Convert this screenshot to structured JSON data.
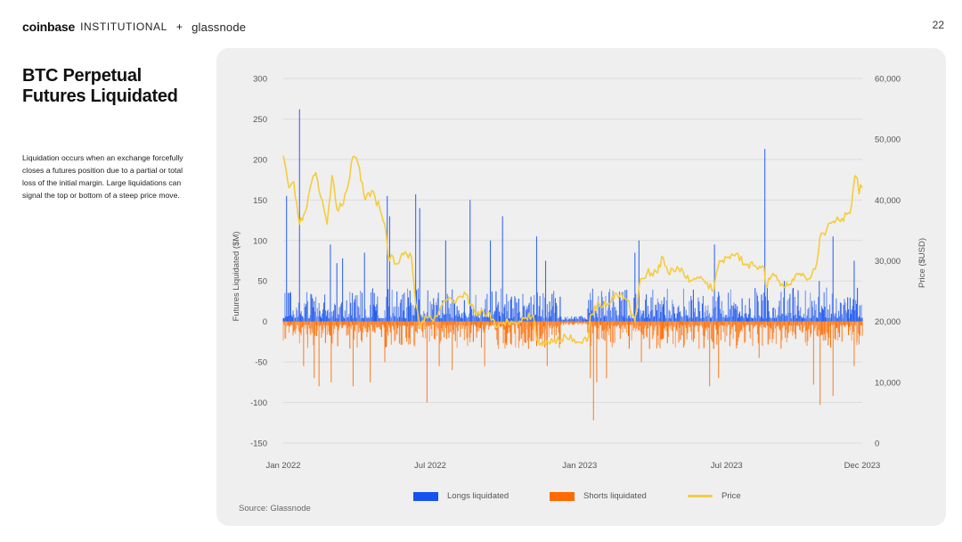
{
  "header": {
    "brand_primary": "coinbase",
    "brand_secondary": "INSTITUTIONAL",
    "brand_joiner": "+",
    "partner": "glassnode",
    "page_number": "22"
  },
  "sidebar": {
    "title": "BTC Perpetual Futures Liquidated",
    "description": "Liquidation occurs  when an exchange forcefully closes a futures position due to a partial or total loss of the initial margin. Large liquidations can signal the  top or bottom of a steep price move."
  },
  "source": "Source: Glassnode",
  "chart_data": {
    "type": "bar",
    "title": "",
    "xlabel": "",
    "ylabel": "Futures Liquidated ($M)",
    "y2label": "Price ($USD)",
    "ylim": [
      -150,
      300
    ],
    "y2lim": [
      0,
      60000
    ],
    "y_ticks": [
      "300",
      "250",
      "200",
      "150",
      "100",
      "50",
      "0",
      "-50",
      "-100",
      "-150"
    ],
    "y2_ticks": [
      "60,000",
      "50,000",
      "40,000",
      "30,000",
      "20,000",
      "10,000",
      "0"
    ],
    "x_ticks": [
      "Jan 2022",
      "Jul 2022",
      "Jan 2023",
      "Jul 2023",
      "Dec 2023"
    ],
    "x_range": [
      "2022-01-01",
      "2023-12-15"
    ],
    "grid": true,
    "legend_position": "bottom",
    "legend": [
      {
        "name": "Longs liquidated",
        "color": "#1652f0",
        "kind": "bar"
      },
      {
        "name": "Shorts liquidated",
        "color": "#ff6b00",
        "kind": "bar"
      },
      {
        "name": "Price",
        "color": "#f5cc3c",
        "kind": "line"
      }
    ],
    "series": [
      {
        "name": "Longs liquidated",
        "color": "#1652f0",
        "note": "daily values ($M); baseline noise 5-40, notable spikes listed",
        "spikes": [
          {
            "date": "2022-01-05",
            "value": 155
          },
          {
            "date": "2022-01-21",
            "value": 262
          },
          {
            "date": "2022-02-28",
            "value": 95
          },
          {
            "date": "2022-03-08",
            "value": 72
          },
          {
            "date": "2022-03-15",
            "value": 78
          },
          {
            "date": "2022-04-11",
            "value": 85
          },
          {
            "date": "2022-05-09",
            "value": 155
          },
          {
            "date": "2022-05-12",
            "value": 130
          },
          {
            "date": "2022-06-13",
            "value": 157
          },
          {
            "date": "2022-06-18",
            "value": 140
          },
          {
            "date": "2022-07-20",
            "value": 100
          },
          {
            "date": "2022-08-19",
            "value": 150
          },
          {
            "date": "2022-09-13",
            "value": 100
          },
          {
            "date": "2022-09-28",
            "value": 130
          },
          {
            "date": "2022-11-09",
            "value": 105
          },
          {
            "date": "2022-11-20",
            "value": 75
          },
          {
            "date": "2023-03-10",
            "value": 85
          },
          {
            "date": "2023-03-15",
            "value": 100
          },
          {
            "date": "2023-06-16",
            "value": 95
          },
          {
            "date": "2023-08-17",
            "value": 213
          },
          {
            "date": "2023-09-10",
            "value": 50
          },
          {
            "date": "2023-10-23",
            "value": 50
          },
          {
            "date": "2023-11-09",
            "value": 105
          },
          {
            "date": "2023-12-05",
            "value": 75
          }
        ]
      },
      {
        "name": "Shorts liquidated",
        "color": "#ff6b00",
        "note": "daily values ($M, plotted negative); baseline noise -5 to -30, notable spikes listed",
        "spikes": [
          {
            "date": "2022-01-26",
            "value": -55
          },
          {
            "date": "2022-02-08",
            "value": -70
          },
          {
            "date": "2022-02-14",
            "value": -80
          },
          {
            "date": "2022-03-01",
            "value": -75
          },
          {
            "date": "2022-03-28",
            "value": -80
          },
          {
            "date": "2022-04-18",
            "value": -75
          },
          {
            "date": "2022-05-06",
            "value": -50
          },
          {
            "date": "2022-06-27",
            "value": -100
          },
          {
            "date": "2022-07-12",
            "value": -55
          },
          {
            "date": "2022-07-28",
            "value": -60
          },
          {
            "date": "2022-09-06",
            "value": -55
          },
          {
            "date": "2022-11-22",
            "value": -55
          },
          {
            "date": "2023-01-14",
            "value": -70
          },
          {
            "date": "2023-01-18",
            "value": -122
          },
          {
            "date": "2023-01-22",
            "value": -75
          },
          {
            "date": "2023-02-03",
            "value": -70
          },
          {
            "date": "2023-03-18",
            "value": -50
          },
          {
            "date": "2023-06-10",
            "value": -80
          },
          {
            "date": "2023-06-21",
            "value": -70
          },
          {
            "date": "2023-08-10",
            "value": -45
          },
          {
            "date": "2023-10-16",
            "value": -78
          },
          {
            "date": "2023-10-24",
            "value": -103
          },
          {
            "date": "2023-11-09",
            "value": -92
          },
          {
            "date": "2023-12-05",
            "value": -55
          }
        ]
      },
      {
        "name": "Price",
        "color": "#f5cc3c",
        "axis": "right",
        "points": [
          [
            "2022-01-01",
            47300
          ],
          [
            "2022-01-08",
            42000
          ],
          [
            "2022-01-14",
            43000
          ],
          [
            "2022-01-21",
            36000
          ],
          [
            "2022-01-28",
            38000
          ],
          [
            "2022-02-07",
            44000
          ],
          [
            "2022-02-10",
            44500
          ],
          [
            "2022-02-18",
            40000
          ],
          [
            "2022-02-24",
            36000
          ],
          [
            "2022-03-02",
            44000
          ],
          [
            "2022-03-08",
            38500
          ],
          [
            "2022-03-14",
            39000
          ],
          [
            "2022-03-20",
            41500
          ],
          [
            "2022-03-28",
            47200
          ],
          [
            "2022-04-03",
            46000
          ],
          [
            "2022-04-12",
            40000
          ],
          [
            "2022-04-20",
            41500
          ],
          [
            "2022-04-30",
            38500
          ],
          [
            "2022-05-06",
            36000
          ],
          [
            "2022-05-10",
            31000
          ],
          [
            "2022-05-20",
            29500
          ],
          [
            "2022-05-31",
            31500
          ],
          [
            "2022-06-08",
            30500
          ],
          [
            "2022-06-13",
            23000
          ],
          [
            "2022-06-18",
            19000
          ],
          [
            "2022-06-25",
            21000
          ],
          [
            "2022-07-05",
            20000
          ],
          [
            "2022-07-20",
            23500
          ],
          [
            "2022-08-01",
            23000
          ],
          [
            "2022-08-14",
            24500
          ],
          [
            "2022-08-25",
            21500
          ],
          [
            "2022-09-10",
            21500
          ],
          [
            "2022-09-20",
            19000
          ],
          [
            "2022-10-05",
            20000
          ],
          [
            "2022-10-25",
            20500
          ],
          [
            "2022-11-05",
            21000
          ],
          [
            "2022-11-09",
            17000
          ],
          [
            "2022-11-20",
            16200
          ],
          [
            "2022-12-01",
            17000
          ],
          [
            "2022-12-15",
            17500
          ],
          [
            "2022-12-31",
            16600
          ],
          [
            "2023-01-12",
            17500
          ],
          [
            "2023-01-14",
            21000
          ],
          [
            "2023-01-25",
            23000
          ],
          [
            "2023-02-05",
            23000
          ],
          [
            "2023-02-16",
            24500
          ],
          [
            "2023-03-01",
            23500
          ],
          [
            "2023-03-10",
            20000
          ],
          [
            "2023-03-17",
            27000
          ],
          [
            "2023-03-25",
            28000
          ],
          [
            "2023-04-05",
            28200
          ],
          [
            "2023-04-14",
            30500
          ],
          [
            "2023-04-20",
            28000
          ],
          [
            "2023-05-01",
            29000
          ],
          [
            "2023-05-10",
            27500
          ],
          [
            "2023-05-20",
            26800
          ],
          [
            "2023-06-01",
            27000
          ],
          [
            "2023-06-15",
            25000
          ],
          [
            "2023-06-22",
            30000
          ],
          [
            "2023-07-01",
            30500
          ],
          [
            "2023-07-13",
            31200
          ],
          [
            "2023-07-25",
            29300
          ],
          [
            "2023-08-05",
            29200
          ],
          [
            "2023-08-16",
            29000
          ],
          [
            "2023-08-18",
            26000
          ],
          [
            "2023-08-29",
            27500
          ],
          [
            "2023-09-11",
            25500
          ],
          [
            "2023-09-20",
            27000
          ],
          [
            "2023-10-01",
            27500
          ],
          [
            "2023-10-10",
            27000
          ],
          [
            "2023-10-20",
            29500
          ],
          [
            "2023-10-24",
            34000
          ],
          [
            "2023-11-01",
            35000
          ],
          [
            "2023-11-09",
            36500
          ],
          [
            "2023-11-20",
            37000
          ],
          [
            "2023-11-30",
            37800
          ],
          [
            "2023-12-04",
            42000
          ],
          [
            "2023-12-06",
            44000
          ],
          [
            "2023-12-09",
            43500
          ],
          [
            "2023-12-11",
            41000
          ],
          [
            "2023-12-13",
            42500
          ],
          [
            "2023-12-15",
            42000
          ]
        ]
      }
    ]
  }
}
